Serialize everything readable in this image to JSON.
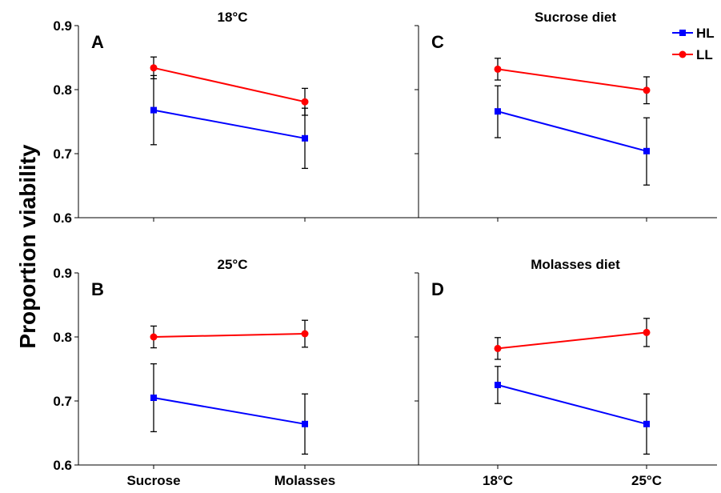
{
  "figure": {
    "ylabel": "Proportion viability",
    "legend": {
      "placement": "top-right",
      "entries": [
        {
          "name": "HL",
          "color": "#0000ff",
          "marker": "square"
        },
        {
          "name": "LL",
          "color": "#ff0000",
          "marker": "circle"
        }
      ]
    }
  },
  "chart_data": [
    {
      "type": "line",
      "panel": "A",
      "title": "18°C",
      "categories": [
        "Sucrose",
        "Molasses"
      ],
      "show_x_tick_labels": false,
      "show_y_tick_labels": true,
      "ylim": [
        0.6,
        0.9
      ],
      "yticks": [
        "0.6",
        "0.7",
        "0.8",
        "0.9"
      ],
      "series": [
        {
          "name": "HL",
          "color": "#0000ff",
          "marker": "square",
          "values": [
            0.768,
            0.724
          ],
          "err_low": [
            0.714,
            0.677
          ],
          "err_high": [
            0.822,
            0.771
          ]
        },
        {
          "name": "LL",
          "color": "#ff0000",
          "marker": "circle",
          "values": [
            0.834,
            0.781
          ],
          "err_low": [
            0.817,
            0.76
          ],
          "err_high": [
            0.851,
            0.802
          ]
        }
      ]
    },
    {
      "type": "line",
      "panel": "C",
      "title": "Sucrose diet",
      "categories": [
        "18°C",
        "25°C"
      ],
      "show_x_tick_labels": false,
      "show_y_tick_labels": false,
      "ylim": [
        0.6,
        0.9
      ],
      "yticks": [
        "0.6",
        "0.7",
        "0.8",
        "0.9"
      ],
      "series": [
        {
          "name": "HL",
          "color": "#0000ff",
          "marker": "square",
          "values": [
            0.766,
            0.704
          ],
          "err_low": [
            0.725,
            0.651
          ],
          "err_high": [
            0.806,
            0.756
          ]
        },
        {
          "name": "LL",
          "color": "#ff0000",
          "marker": "circle",
          "values": [
            0.832,
            0.799
          ],
          "err_low": [
            0.815,
            0.778
          ],
          "err_high": [
            0.849,
            0.82
          ]
        }
      ]
    },
    {
      "type": "line",
      "panel": "B",
      "title": "25°C",
      "categories": [
        "Sucrose",
        "Molasses"
      ],
      "show_x_tick_labels": true,
      "show_y_tick_labels": true,
      "ylim": [
        0.6,
        0.9
      ],
      "yticks": [
        "0.6",
        "0.7",
        "0.8",
        "0.9"
      ],
      "series": [
        {
          "name": "HL",
          "color": "#0000ff",
          "marker": "square",
          "values": [
            0.705,
            0.664
          ],
          "err_low": [
            0.652,
            0.617
          ],
          "err_high": [
            0.758,
            0.711
          ]
        },
        {
          "name": "LL",
          "color": "#ff0000",
          "marker": "circle",
          "values": [
            0.8,
            0.805
          ],
          "err_low": [
            0.783,
            0.784
          ],
          "err_high": [
            0.817,
            0.826
          ]
        }
      ]
    },
    {
      "type": "line",
      "panel": "D",
      "title": "Molasses diet",
      "categories": [
        "18°C",
        "25°C"
      ],
      "show_x_tick_labels": true,
      "show_y_tick_labels": false,
      "ylim": [
        0.6,
        0.9
      ],
      "yticks": [
        "0.6",
        "0.7",
        "0.8",
        "0.9"
      ],
      "series": [
        {
          "name": "HL",
          "color": "#0000ff",
          "marker": "square",
          "values": [
            0.725,
            0.664
          ],
          "err_low": [
            0.696,
            0.617
          ],
          "err_high": [
            0.754,
            0.711
          ]
        },
        {
          "name": "LL",
          "color": "#ff0000",
          "marker": "circle",
          "values": [
            0.782,
            0.807
          ],
          "err_low": [
            0.765,
            0.785
          ],
          "err_high": [
            0.799,
            0.829
          ]
        }
      ]
    }
  ]
}
